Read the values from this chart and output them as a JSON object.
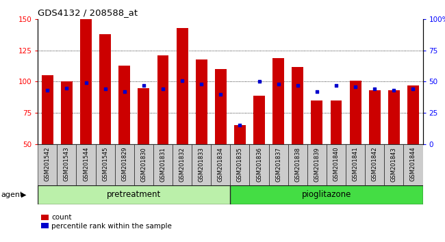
{
  "title": "GDS4132 / 208588_at",
  "samples": [
    "GSM201542",
    "GSM201543",
    "GSM201544",
    "GSM201545",
    "GSM201829",
    "GSM201830",
    "GSM201831",
    "GSM201832",
    "GSM201833",
    "GSM201834",
    "GSM201835",
    "GSM201836",
    "GSM201837",
    "GSM201838",
    "GSM201839",
    "GSM201840",
    "GSM201841",
    "GSM201842",
    "GSM201843",
    "GSM201844"
  ],
  "count_values": [
    105,
    100,
    150,
    138,
    113,
    95,
    121,
    143,
    118,
    110,
    65,
    89,
    119,
    112,
    85,
    85,
    101,
    93,
    93,
    97
  ],
  "percentile_values": [
    43,
    45,
    49,
    44,
    42,
    47,
    44,
    51,
    48,
    40,
    15,
    50,
    48,
    47,
    42,
    47,
    46,
    44,
    43,
    44
  ],
  "pretreatment_count": 10,
  "pioglitazone_count": 10,
  "bar_color": "#cc0000",
  "percentile_color": "#0000cc",
  "ylim_left": [
    50,
    150
  ],
  "ylim_right": [
    0,
    100
  ],
  "yticks_left": [
    50,
    75,
    100,
    125,
    150
  ],
  "yticks_right": [
    0,
    25,
    50,
    75,
    100
  ],
  "group_colors": [
    "#bbf0aa",
    "#44dd44"
  ],
  "group_labels": [
    "pretreatment",
    "pioglitazone"
  ],
  "legend_count_label": "count",
  "legend_percentile_label": "percentile rank within the sample",
  "agent_label": "agent",
  "label_bg_color": "#cccccc",
  "bar_width": 0.6
}
